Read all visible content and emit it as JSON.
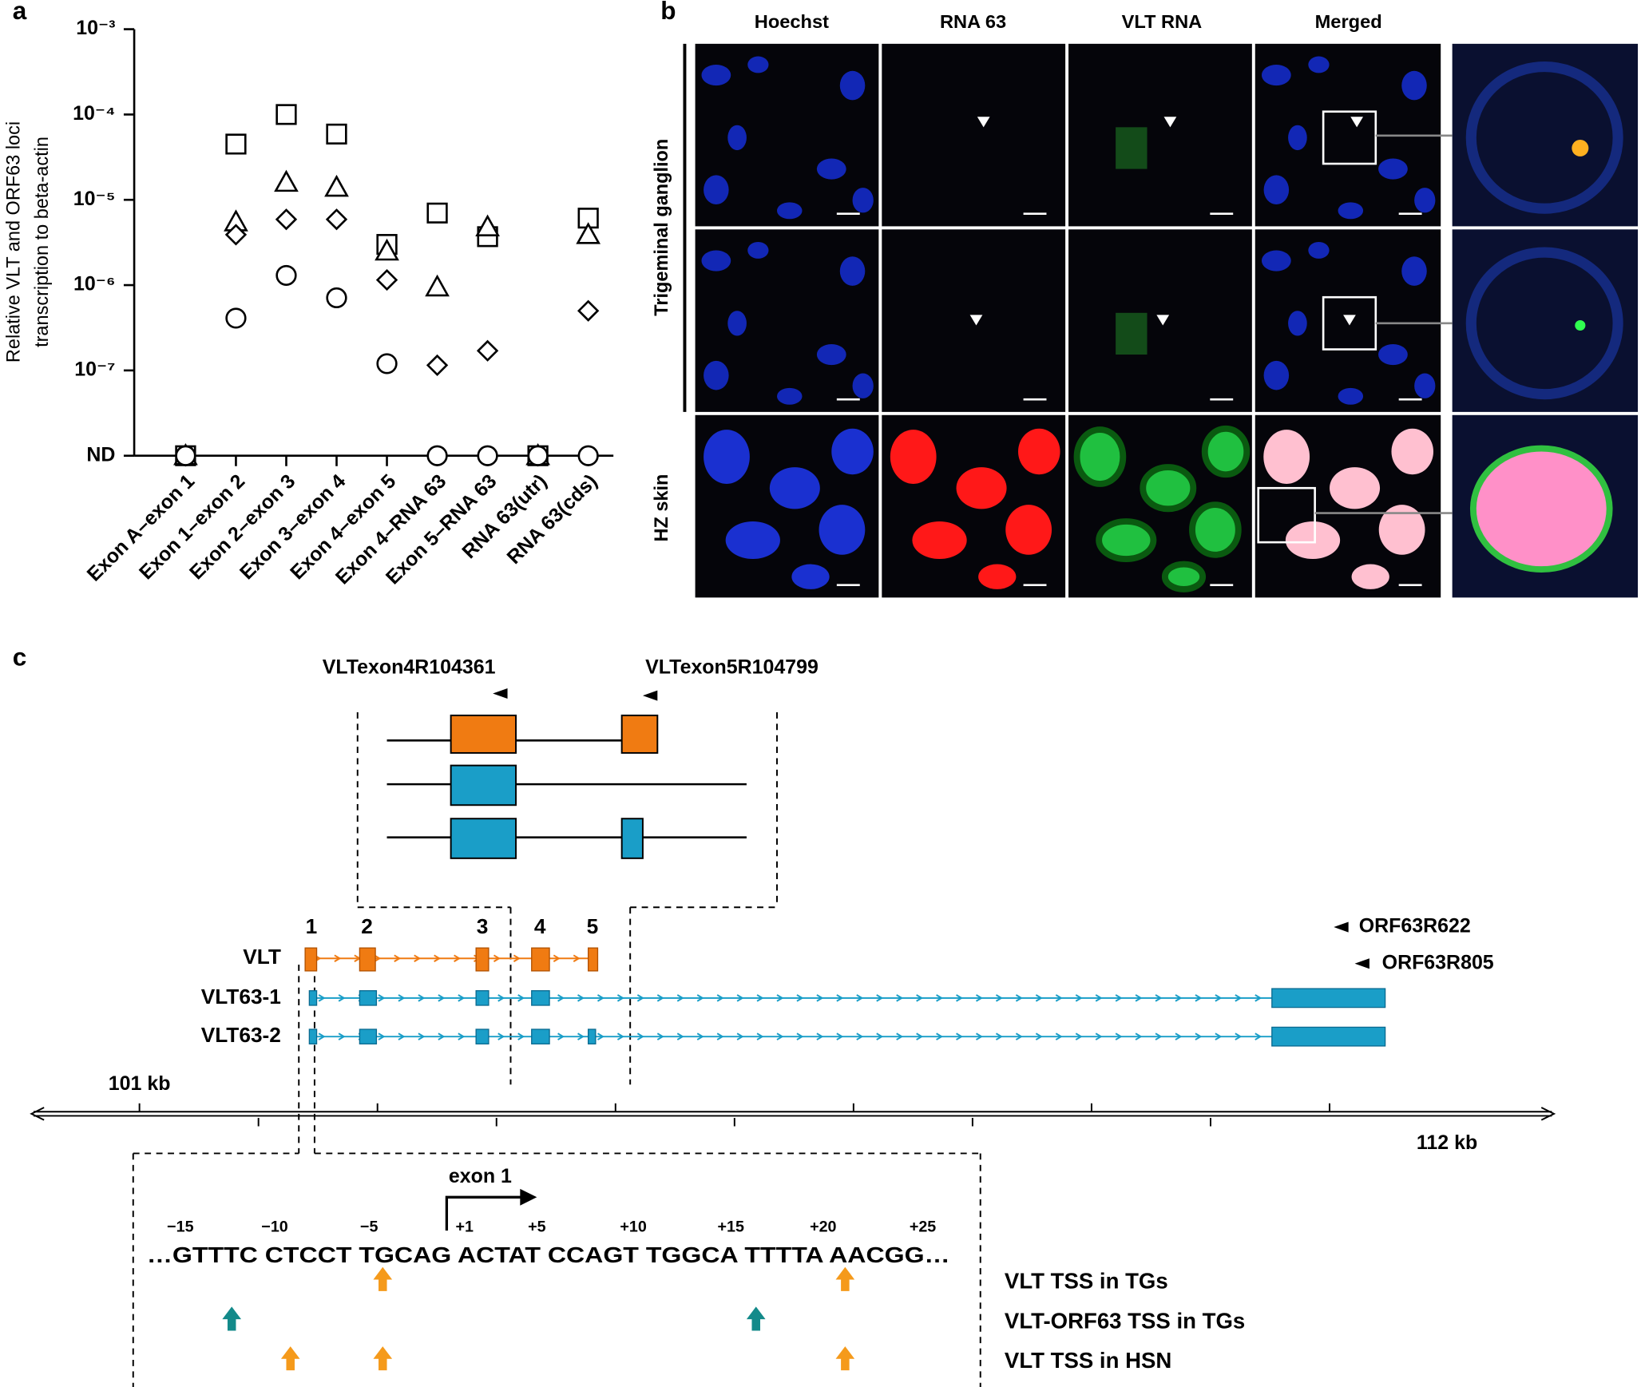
{
  "panel_labels": [
    "a",
    "b",
    "c"
  ],
  "chart_data": {
    "type": "scatter",
    "y_label": [
      "Relative VLT and ORF63 loci",
      "transcription to beta-actin"
    ],
    "categories": [
      "Exon A–exon 1",
      "Exon 1–exon 2",
      "Exon 2–exon 3",
      "Exon 3–exon 4",
      "Exon 4–exon 5",
      "Exon 4–RNA 63",
      "Exon 5–RNA 63",
      "RNA 63(utr)",
      "RNA 63(cds)"
    ],
    "series": [
      {
        "marker": "square",
        "color": "#000000",
        "values": [
          1e-08,
          4.5e-05,
          0.0001,
          5.9e-05,
          3e-06,
          7e-06,
          3.7e-06,
          1e-08,
          6.1e-06
        ]
      },
      {
        "marker": "triangle",
        "color": "#000000",
        "values": [
          1e-08,
          5.5e-06,
          1.6e-05,
          1.4e-05,
          2.5e-06,
          9.5e-07,
          4.8e-06,
          1e-08,
          3.9e-06
        ]
      },
      {
        "marker": "diamond",
        "color": "#000000",
        "values": [
          1e-08,
          3.9e-06,
          5.9e-06,
          5.9e-06,
          1.15e-06,
          1.15e-07,
          1.7e-07,
          1e-08,
          5e-07
        ]
      },
      {
        "marker": "circle",
        "color": "#000000",
        "values": [
          1e-08,
          4.1e-07,
          1.3e-06,
          7.1e-07,
          1.2e-07,
          1e-08,
          1e-08,
          1e-08,
          1e-08
        ]
      }
    ],
    "log_scale": true,
    "ylim": [
      1e-08,
      0.001
    ],
    "yticks": [
      {
        "value": 0.001,
        "label": "10⁻³"
      },
      {
        "value": 0.0001,
        "label": "10⁻⁴"
      },
      {
        "value": 1e-05,
        "label": "10⁻⁵"
      },
      {
        "value": 1e-06,
        "label": "10⁻⁶"
      },
      {
        "value": 1e-07,
        "label": "10⁻⁷"
      },
      {
        "value": 1e-08,
        "label": "ND"
      }
    ]
  },
  "panel_b": {
    "columns": [
      "Hoechst",
      "RNA 63",
      "VLT RNA",
      "Merged"
    ],
    "rows": [
      "Trigeminal ganglion",
      "HZ skin"
    ]
  },
  "panel_c": {
    "primers_top": [
      "VLTexon4R104361",
      "VLTexon5R104799"
    ],
    "primers_right": [
      "ORF63R622",
      "ORF63R805"
    ],
    "exon_numbers": [
      "1",
      "2",
      "3",
      "4",
      "5"
    ],
    "tracks": [
      "VLT",
      "VLT63-1",
      "VLT63-2"
    ],
    "scale_labels": [
      "101 kb",
      "112 kb"
    ],
    "tss_label": "exon 1",
    "positions": [
      "−15",
      "−10",
      "−5",
      "+1",
      "+5",
      "+10",
      "+15",
      "+20",
      "+25"
    ],
    "sequence": "…GTTTC CTCCT TGCAG ACTAT CCAGT TGGCA TTTTA AACGG…",
    "tss_rows": [
      "VLT TSS in TGs",
      "VLT-ORF63 TSS in TGs",
      "VLT TSS in HSN"
    ]
  }
}
